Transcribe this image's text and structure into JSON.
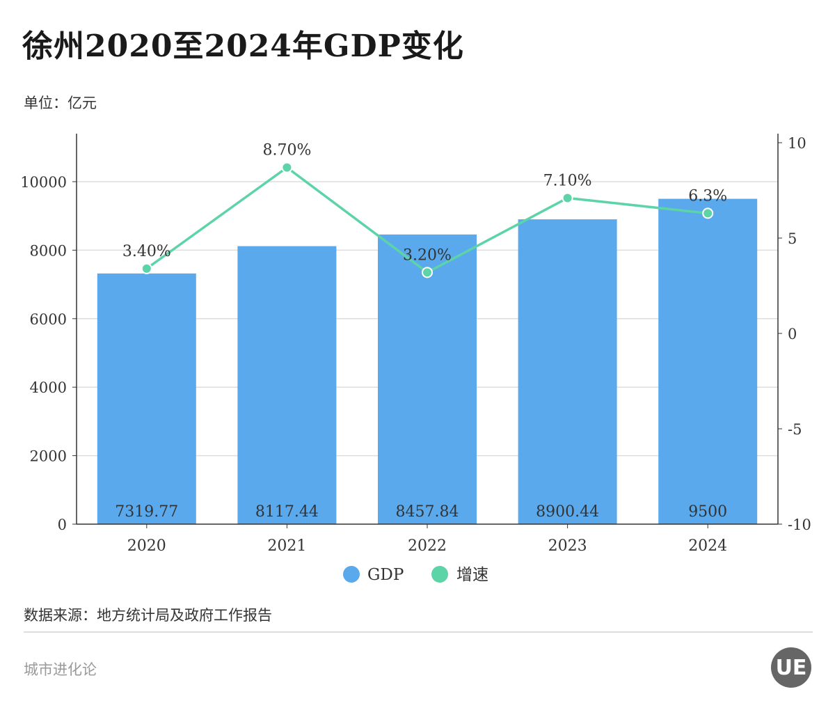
{
  "title": "徐州2020至2024年GDP变化",
  "unit": "单位：亿元",
  "source": "数据来源：地方统计局及政府工作报告",
  "brand": "城市进化论",
  "logo_text": "UE",
  "colors": {
    "bar": "#5aa9ec",
    "line": "#5dd3a8",
    "grid": "#dddddd",
    "axis": "#333333"
  },
  "chart_data": {
    "type": "bar+line",
    "categories": [
      "2020",
      "2021",
      "2022",
      "2023",
      "2024"
    ],
    "series": [
      {
        "name": "GDP",
        "type": "bar",
        "axis": "left",
        "values": [
          7319.77,
          8117.44,
          8457.84,
          8900.44,
          9500
        ],
        "labels": [
          "7319.77",
          "8117.44",
          "8457.84",
          "8900.44",
          "9500"
        ]
      },
      {
        "name": "增速",
        "type": "line",
        "axis": "right",
        "values": [
          3.4,
          8.7,
          3.2,
          7.1,
          6.3
        ],
        "labels": [
          "3.40%",
          "8.70%",
          "3.20%",
          "7.10%",
          "6.3%"
        ]
      }
    ],
    "y_left": {
      "range": [
        0,
        10000
      ],
      "ticks": [
        "0",
        "2000",
        "4000",
        "6000",
        "8000",
        "10000"
      ]
    },
    "y_right": {
      "range": [
        -10,
        10
      ],
      "ticks": [
        "-10",
        "-5",
        "0",
        "5",
        "10"
      ]
    },
    "grid": true,
    "legend": "bottom"
  }
}
